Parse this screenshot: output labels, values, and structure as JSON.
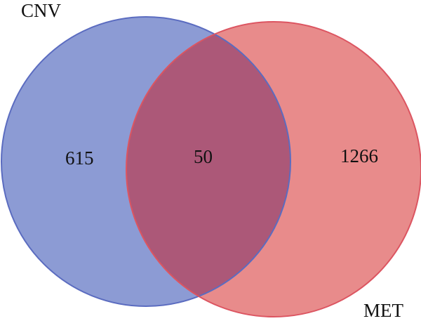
{
  "chart_data": {
    "type": "venn",
    "sets": [
      {
        "name": "CNV",
        "color": "#8c9bd4",
        "stroke": "#5b6cc0",
        "count": 615
      },
      {
        "name": "MET",
        "color": "#e88b8b",
        "stroke": "#dc5561",
        "count": 1266
      }
    ],
    "intersection": 50,
    "intersection_color": "#ac5878"
  }
}
